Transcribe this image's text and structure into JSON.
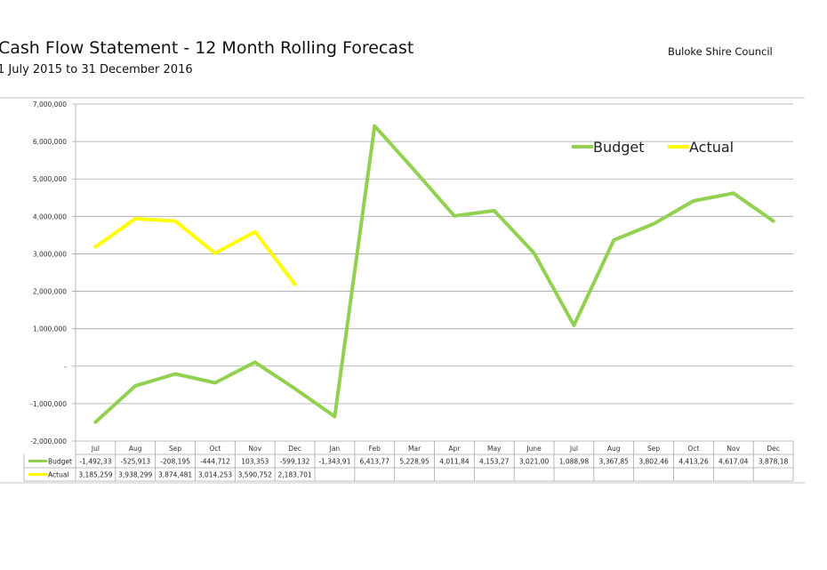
{
  "header": {
    "title": "Cash Flow Statement - 12 Month Rolling Forecast",
    "subtitle": "1 July 2015 to 31 December 2016",
    "organisation": "Buloke Shire Council"
  },
  "chart_data": {
    "type": "line",
    "categories": [
      "Jul",
      "Aug",
      "Sep",
      "Oct",
      "Nov",
      "Dec",
      "Jan",
      "Feb",
      "Mar",
      "Apr",
      "May",
      "June",
      "Jul",
      "Aug",
      "Sep",
      "Oct",
      "Nov",
      "Dec"
    ],
    "series": [
      {
        "name": "Budget",
        "color": "#92d050",
        "values": [
          -1492330,
          -525913,
          -208195,
          -444712,
          103353,
          -599132,
          -1343910,
          6413770,
          5228950,
          4011840,
          4153270,
          3021000,
          1088980,
          3367850,
          3802460,
          4413260,
          4617040,
          3878180
        ],
        "labels": [
          "-1,492,33",
          "-525,913",
          "-208,195",
          "-444,712",
          "103,353",
          "-599,132",
          "-1,343,91",
          "6,413,77",
          "5,228,95",
          "4,011,84",
          "4,153,27",
          "3,021,00",
          "1,088,98",
          "3,367,85",
          "3,802,46",
          "4,413,26",
          "4,617,04",
          "3,878,18"
        ]
      },
      {
        "name": "Actual",
        "color": "#ffff00",
        "values": [
          3185259,
          3938299,
          3874481,
          3014253,
          3590752,
          2183701,
          null,
          null,
          null,
          null,
          null,
          null,
          null,
          null,
          null,
          null,
          null,
          null
        ],
        "labels": [
          "3,185,259",
          "3,938,299",
          "3,874,481",
          "3,014,253",
          "3,590,752",
          "2,183,701",
          "",
          "",
          "",
          "",
          "",
          "",
          "",
          "",
          "",
          "",
          "",
          ""
        ]
      }
    ],
    "ylim": [
      -2000000,
      7000000
    ],
    "yticks": [
      7000000,
      6000000,
      5000000,
      4000000,
      3000000,
      2000000,
      1000000,
      0,
      -1000000,
      -2000000
    ],
    "ytick_labels": [
      "7,000,000",
      "6,000,000",
      "5,000,000",
      "4,000,000",
      "3,000,000",
      "2,000,000",
      "1,000,000",
      "-",
      "-1,000,000",
      "-2,000,000"
    ],
    "grid": true,
    "legend": "top-right",
    "data_table": true
  }
}
